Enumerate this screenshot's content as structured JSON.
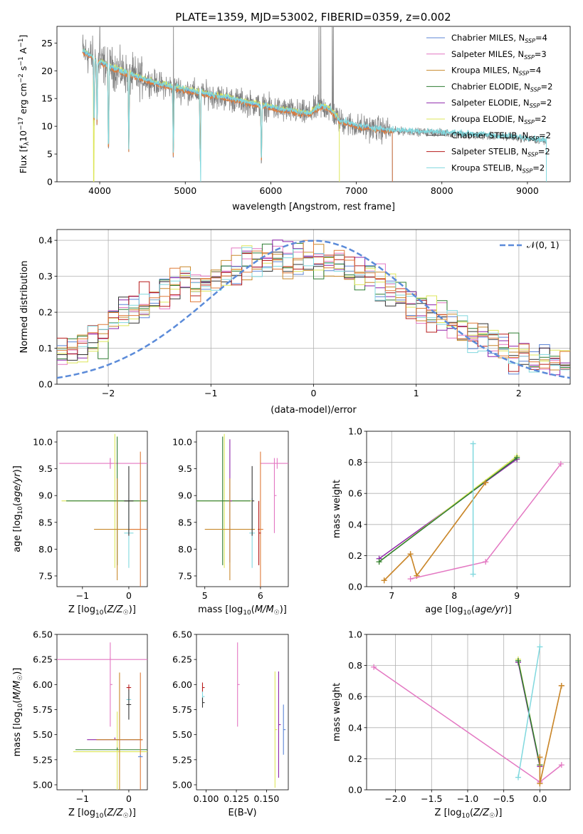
{
  "figure": {
    "title": "PLATE=1359, MJD=53002, FIBERID=0359, z=0.002"
  },
  "colors": {
    "Chabrier MILES": "#5b84d6",
    "Salpeter MILES": "#e377c2",
    "Kroupa MILES": "#c8892b",
    "Chabrier ELODIE": "#2e7d32",
    "Salpeter ELODIE": "#8e24aa",
    "Kroupa ELODIE": "#dde65a",
    "Chabrier STELIB": "#333333",
    "Salpeter STELIB": "#b71c1c",
    "Kroupa STELIB": "#80d8de",
    "data": "#808080",
    "orange": "#e07b39",
    "gauss": "#5b8bd9"
  },
  "chart_data": [
    {
      "id": "spectrum",
      "type": "line",
      "title": "PLATE=1359, MJD=53002, FIBERID=0359, z=0.002",
      "xlabel": "wavelength [Angstrom, rest frame]",
      "ylabel": "Flux [f_λ10^-17 erg cm^-2 s^-1 A^-1]",
      "xlim": [
        3500,
        9500
      ],
      "ylim": [
        0,
        28
      ],
      "xticks": [
        4000,
        5000,
        6000,
        7000,
        8000,
        9000
      ],
      "yticks": [
        0,
        5,
        10,
        15,
        20,
        25
      ],
      "grid": false,
      "legend_position": "top-right",
      "series": [
        {
          "name": "Chabrier MILES, N_SSP=4",
          "label": "Chabrier MILES, N",
          "sub": "SSP",
          "suffix": "=4"
        },
        {
          "name": "Salpeter MILES, N_SSP=3",
          "label": "Salpeter MILES, N",
          "sub": "SSP",
          "suffix": "=3"
        },
        {
          "name": "Kroupa MILES, N_SSP=4",
          "label": "Kroupa MILES, N",
          "sub": "SSP",
          "suffix": "=4"
        },
        {
          "name": "Chabrier ELODIE, N_SSP=2",
          "label": "Chabrier ELODIE, N",
          "sub": "SSP",
          "suffix": "=2"
        },
        {
          "name": "Salpeter ELODIE, N_SSP=2",
          "label": "Salpeter ELODIE, N",
          "sub": "SSP",
          "suffix": "=2"
        },
        {
          "name": "Kroupa ELODIE, N_SSP=2",
          "label": "Kroupa ELODIE, N",
          "sub": "SSP",
          "suffix": "=2"
        },
        {
          "name": "Chabrier STELIB, N_SSP=2",
          "label": "Chabrier STELIB, N",
          "sub": "SSP",
          "suffix": "=2"
        },
        {
          "name": "Salpeter STELIB, N_SSP=2",
          "label": "Salpeter STELIB, N",
          "sub": "SSP",
          "suffix": "=2"
        },
        {
          "name": "Kroupa STELIB, N_SSP=2",
          "label": "Kroupa STELIB, N",
          "sub": "SSP",
          "suffix": "=2"
        }
      ],
      "continuum": [
        [
          3800,
          23.5
        ],
        [
          4000,
          21.5
        ],
        [
          4300,
          19.5
        ],
        [
          4700,
          17.5
        ],
        [
          5000,
          16.5
        ],
        [
          5500,
          15
        ],
        [
          6000,
          13.3
        ],
        [
          6500,
          12
        ],
        [
          6800,
          11
        ],
        [
          7000,
          10
        ],
        [
          7400,
          9.2
        ],
        [
          8000,
          8.8
        ],
        [
          8500,
          8.3
        ],
        [
          9000,
          7.8
        ],
        [
          9200,
          7.3
        ]
      ],
      "data_range": [
        3800,
        9220
      ],
      "absorption_lines": [
        [
          3934,
          9
        ],
        [
          3969,
          9
        ],
        [
          4102,
          3
        ],
        [
          4340,
          4
        ],
        [
          4861,
          3
        ],
        [
          5175,
          2
        ],
        [
          5890,
          2
        ]
      ],
      "emission_spikes": [
        [
          4000,
          28
        ],
        [
          4861,
          28
        ],
        [
          6563,
          28
        ],
        [
          6583,
          28
        ],
        [
          6720,
          28
        ],
        [
          6731,
          28
        ]
      ],
      "h_alpha_bump": [
        6450,
        6800,
        1.8
      ],
      "model_cut": [
        [
          3930,
          0
        ],
        [
          5180,
          0
        ],
        [
          6800,
          0
        ]
      ]
    },
    {
      "id": "residuals",
      "type": "line",
      "xlabel": "(data-model)/error",
      "ylabel": "Normed distribution",
      "xlim": [
        -2.5,
        2.5
      ],
      "ylim": [
        0,
        0.43
      ],
      "xticks": [
        -2,
        -1,
        0,
        1,
        2
      ],
      "xtick_labels": [
        "−2",
        "−1",
        "0",
        "1",
        "2"
      ],
      "yticks": [
        0.0,
        0.1,
        0.2,
        0.3,
        0.4
      ],
      "ytick_labels": [
        "0.0",
        "0.1",
        "0.2",
        "0.3",
        "0.4"
      ],
      "grid": true,
      "legend": "𝒩(0, 1)",
      "legend_position": "top-right",
      "gauss": {
        "mu": 0,
        "sigma": 1
      }
    },
    {
      "id": "age_vs_Z",
      "type": "scatter",
      "xlabel": "Z [log10(Z/Z☉)]",
      "ylabel": "age  [log10(age/yr)]",
      "xlim": [
        -1.55,
        0.4
      ],
      "ylim": [
        7.3,
        10.2
      ],
      "xticks": [
        -1,
        0
      ],
      "xtick_labels": [
        "−1",
        "0"
      ],
      "yticks": [
        7.5,
        8.0,
        8.5,
        9.0,
        9.5,
        10.0
      ],
      "ytick_labels": [
        "7.5",
        "8.0",
        "8.5",
        "9.0",
        "9.5",
        "10.0"
      ],
      "grid": false,
      "crosses": [
        {
          "c": "#e377c2",
          "x": -0.4,
          "y": 9.6,
          "xerr": 1.1,
          "yerr": 0.1
        },
        {
          "c": "#e377c2",
          "x": -0.4,
          "y": 9.6,
          "xerr": 0.0,
          "yerr": 0.1
        },
        {
          "c": "#dde65a",
          "x": -0.3,
          "y": 8.9,
          "xerr": 1.15,
          "yerr": 1.25
        },
        {
          "c": "#2e7d32",
          "x": -0.25,
          "y": 8.9,
          "xerr": 1.1,
          "yerr": 1.2
        },
        {
          "c": "#c8892b",
          "x": -0.25,
          "y": 8.37,
          "xerr": 0.5,
          "yerr": 0.95
        },
        {
          "c": "#e07b39",
          "x": 0.25,
          "y": 8.37,
          "xerr": 0.25,
          "yerr": 1.45
        },
        {
          "c": "#80d8de",
          "x": 0.0,
          "y": 8.3,
          "xerr": 0.1,
          "yerr": 0.65
        },
        {
          "c": "#333333",
          "x": 0.0,
          "y": 8.9,
          "xerr": 0.1,
          "yerr": 0.65
        }
      ]
    },
    {
      "id": "age_vs_mass",
      "type": "scatter",
      "xlabel": "mass [log10(M/M☉)]",
      "xlim": [
        4.85,
        6.5
      ],
      "ylim": [
        7.3,
        10.2
      ],
      "xticks": [
        5,
        6
      ],
      "xtick_labels": [
        "5",
        "6"
      ],
      "yticks": [
        7.5,
        8.0,
        8.5,
        9.0,
        9.5,
        10.0
      ],
      "ytick_labels": [
        "7.5",
        "8.0",
        "8.5",
        "9.0",
        "9.5",
        "10.0"
      ],
      "grid": false,
      "crosses": [
        {
          "c": "#e377c2",
          "x": 6.3,
          "y": 9.6,
          "xerr": 0.3,
          "yerr": 0.1
        },
        {
          "c": "#e377c2",
          "x": 6.25,
          "y": 9.0,
          "xerr": 0.0,
          "yerr": 0.7
        },
        {
          "c": "#dde65a",
          "x": 5.35,
          "y": 8.9,
          "xerr": 0.5,
          "yerr": 1.25
        },
        {
          "c": "#2e7d32",
          "x": 5.32,
          "y": 8.9,
          "xerr": 0.5,
          "yerr": 1.2
        },
        {
          "c": "#8e24aa",
          "x": 5.45,
          "y": 8.9,
          "xerr": 0.0,
          "yerr": 1.15
        },
        {
          "c": "#c8892b",
          "x": 5.45,
          "y": 8.37,
          "xerr": 0.45,
          "yerr": 0.95
        },
        {
          "c": "#e07b39",
          "x": 6.0,
          "y": 8.37,
          "xerr": 0.05,
          "yerr": 1.45
        },
        {
          "c": "#80d8de",
          "x": 5.85,
          "y": 8.3,
          "xerr": 0.05,
          "yerr": 0.65
        },
        {
          "c": "#333333",
          "x": 5.85,
          "y": 8.9,
          "xerr": 0.0,
          "yerr": 0.65
        },
        {
          "c": "#b71c1c",
          "x": 5.97,
          "y": 8.3,
          "xerr": 0.0,
          "yerr": 0.6
        }
      ]
    },
    {
      "id": "weight_vs_age",
      "type": "line",
      "xlabel": "age  [log10(age/yr)]",
      "ylabel": "mass weight",
      "xlim": [
        6.6,
        9.85
      ],
      "ylim": [
        0,
        1
      ],
      "xticks": [
        7,
        8,
        9
      ],
      "xtick_labels": [
        "7",
        "8",
        "9"
      ],
      "yticks": [
        0,
        0.2,
        0.4,
        0.6,
        0.8,
        1.0
      ],
      "ytick_labels": [
        "0.0",
        "0.2",
        "0.4",
        "0.6",
        "0.8",
        "1.0"
      ],
      "grid": true,
      "series": [
        {
          "c": "#8e24aa",
          "x": [
            6.8,
            9.0
          ],
          "y": [
            0.18,
            0.82
          ]
        },
        {
          "c": "#dde65a",
          "x": [
            6.8,
            9.0
          ],
          "y": [
            0.16,
            0.84
          ]
        },
        {
          "c": "#2e7d32",
          "x": [
            6.8,
            9.0
          ],
          "y": [
            0.16,
            0.83
          ]
        },
        {
          "c": "#e07b39",
          "x": [
            6.88,
            7.3,
            7.4,
            8.5
          ],
          "y": [
            0.04,
            0.21,
            0.07,
            0.67
          ]
        },
        {
          "c": "#c8892b",
          "x": [
            6.88,
            7.3,
            7.4,
            8.5
          ],
          "y": [
            0.04,
            0.21,
            0.07,
            0.67
          ]
        },
        {
          "c": "#e377c2",
          "x": [
            7.3,
            8.5,
            9.7
          ],
          "y": [
            0.05,
            0.16,
            0.79
          ]
        },
        {
          "c": "#80d8de",
          "x": [
            8.3,
            8.3
          ],
          "y": [
            0.08,
            0.92
          ]
        }
      ]
    },
    {
      "id": "mass_vs_Z",
      "type": "scatter",
      "xlabel": "Z [log10(Z/Z☉)]",
      "ylabel": "mass [log10(M/M☉)]",
      "xlim": [
        -1.55,
        0.4
      ],
      "ylim": [
        4.95,
        6.5
      ],
      "xticks": [
        -1,
        0
      ],
      "xtick_labels": [
        "−1",
        "0"
      ],
      "yticks": [
        5.0,
        5.25,
        5.5,
        5.75,
        6.0,
        6.25,
        6.5
      ],
      "ytick_labels": [
        "5.00",
        "5.25",
        "5.50",
        "5.75",
        "6.00",
        "6.25",
        "6.50"
      ],
      "grid": false,
      "crosses": [
        {
          "c": "#e377c2",
          "x": -0.4,
          "y": 6.25,
          "xerr": 1.15,
          "yerr": 0.0
        },
        {
          "c": "#e377c2",
          "x": -0.4,
          "y": 6.0,
          "xerr": 0.0,
          "yerr": 0.42
        },
        {
          "c": "#dde65a",
          "x": -0.25,
          "y": 5.33,
          "xerr": 0.95,
          "yerr": 0.4
        },
        {
          "c": "#2e7d32",
          "x": -0.25,
          "y": 5.35,
          "xerr": 0.9,
          "yerr": 0.0
        },
        {
          "c": "#8e24aa",
          "x": -0.3,
          "y": 5.45,
          "xerr": 0.6,
          "yerr": 0.0
        },
        {
          "c": "#c8892b",
          "x": -0.2,
          "y": 5.45,
          "xerr": 0.5,
          "yerr": 0.67
        },
        {
          "c": "#e07b39",
          "x": 0.25,
          "y": 5.45,
          "xerr": 0.0,
          "yerr": 0.67
        },
        {
          "c": "#b71c1c",
          "x": 0.0,
          "y": 5.97,
          "xerr": 0.05,
          "yerr": 0.03
        },
        {
          "c": "#80d8de",
          "x": 0.0,
          "y": 5.85,
          "xerr": 0.05,
          "yerr": 0.03
        },
        {
          "c": "#333333",
          "x": 0.0,
          "y": 5.8,
          "xerr": 0.05,
          "yerr": 0.15
        },
        {
          "c": "#5b84d6",
          "x": 0.25,
          "y": 5.28,
          "xerr": 0.05,
          "yerr": 0.0
        }
      ]
    },
    {
      "id": "mass_vs_ebv",
      "type": "scatter",
      "xlabel": "E(B-V)",
      "xlim": [
        0.092,
        0.168
      ],
      "ylim": [
        4.95,
        6.5
      ],
      "xticks": [
        0.1,
        0.125,
        0.15
      ],
      "xtick_labels": [
        "0.100",
        "0.125",
        "0.150"
      ],
      "yticks": [
        5.0,
        5.25,
        5.5,
        5.75,
        6.0,
        6.25,
        6.5
      ],
      "ytick_labels": [
        "5.00",
        "5.25",
        "5.50",
        "5.75",
        "6.00",
        "6.25",
        "6.50"
      ],
      "grid": false,
      "crosses": [
        {
          "c": "#b71c1c",
          "x": 0.097,
          "y": 5.97,
          "xerr": 0.0,
          "yerr": 0.05
        },
        {
          "c": "#80d8de",
          "x": 0.097,
          "y": 5.88,
          "xerr": 0.0,
          "yerr": 0.05
        },
        {
          "c": "#333333",
          "x": 0.097,
          "y": 5.82,
          "xerr": 0.0,
          "yerr": 0.05
        },
        {
          "c": "#e377c2",
          "x": 0.126,
          "y": 6.0,
          "xerr": 0.0,
          "yerr": 0.42
        },
        {
          "c": "#dde65a",
          "x": 0.157,
          "y": 5.55,
          "xerr": 0.0,
          "yerr": 0.58
        },
        {
          "c": "#8e24aa",
          "x": 0.16,
          "y": 5.6,
          "xerr": 0.0,
          "yerr": 0.53
        },
        {
          "c": "#5b84d6",
          "x": 0.164,
          "y": 5.55,
          "xerr": 0.0,
          "yerr": 0.25
        }
      ]
    },
    {
      "id": "weight_vs_Z",
      "type": "line",
      "xlabel": "Z [log10(Z/Z☉)]",
      "ylabel": "mass weight",
      "xlim": [
        -2.4,
        0.42
      ],
      "ylim": [
        0,
        1
      ],
      "xticks": [
        -2.0,
        -1.5,
        -1.0,
        -0.5,
        0.0
      ],
      "xtick_labels": [
        "−2.0",
        "−1.5",
        "−1.0",
        "−0.5",
        "0.0"
      ],
      "yticks": [
        0,
        0.2,
        0.4,
        0.6,
        0.8,
        1.0
      ],
      "ytick_labels": [
        "0.0",
        "0.2",
        "0.4",
        "0.6",
        "0.8",
        "1.0"
      ],
      "grid": true,
      "series": [
        {
          "c": "#e377c2",
          "x": [
            -2.3,
            0.0,
            0.3
          ],
          "y": [
            0.79,
            0.05,
            0.16
          ]
        },
        {
          "c": "#8e24aa",
          "x": [
            -0.3,
            0.0
          ],
          "y": [
            0.82,
            0.15
          ]
        },
        {
          "c": "#dde65a",
          "x": [
            -0.3,
            0.0
          ],
          "y": [
            0.84,
            0.16
          ]
        },
        {
          "c": "#2e7d32",
          "x": [
            -0.3,
            0.0
          ],
          "y": [
            0.83,
            0.16
          ]
        },
        {
          "c": "#e07b39",
          "x": [
            0.0,
            0.0,
            0.3
          ],
          "y": [
            0.21,
            0.04,
            0.67
          ]
        },
        {
          "c": "#c8892b",
          "x": [
            0.0,
            0.0,
            0.3
          ],
          "y": [
            0.21,
            0.04,
            0.67
          ]
        },
        {
          "c": "#80d8de",
          "x": [
            -0.3,
            0.0
          ],
          "y": [
            0.08,
            0.92
          ]
        }
      ]
    }
  ]
}
